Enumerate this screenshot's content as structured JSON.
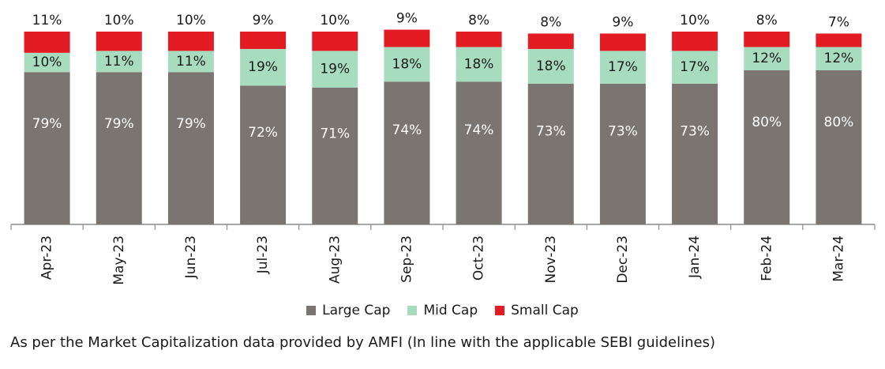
{
  "chart_data": {
    "type": "bar",
    "stacked": true,
    "categories": [
      "Apr-23",
      "May-23",
      "Jun-23",
      "Jul-23",
      "Aug-23",
      "Sep-23",
      "Oct-23",
      "Nov-23",
      "Dec-23",
      "Jan-24",
      "Feb-24",
      "Mar-24"
    ],
    "series": [
      {
        "name": "Large Cap",
        "color": "#7a7571",
        "values": [
          79,
          79,
          79,
          72,
          71,
          74,
          74,
          73,
          73,
          73,
          80,
          80
        ],
        "labels": [
          "79%",
          "79%",
          "79%",
          "72%",
          "71%",
          "74%",
          "74%",
          "73%",
          "73%",
          "73%",
          "80%",
          "80%"
        ]
      },
      {
        "name": "Mid Cap",
        "color": "#a8dcbf",
        "values": [
          10,
          11,
          11,
          19,
          19,
          18,
          18,
          18,
          17,
          17,
          12,
          12
        ],
        "labels": [
          "10%",
          "11%",
          "11%",
          "19%",
          "19%",
          "18%",
          "18%",
          "18%",
          "17%",
          "17%",
          "12%",
          "12%"
        ]
      },
      {
        "name": "Small Cap",
        "color": "#e31b23",
        "values": [
          11,
          10,
          10,
          9,
          10,
          9,
          8,
          8,
          9,
          10,
          8,
          7
        ],
        "labels": [
          "11%",
          "10%",
          "10%",
          "9%",
          "10%",
          "9%",
          "8%",
          "8%",
          "9%",
          "10%",
          "8%",
          "7%"
        ]
      }
    ],
    "ylim": [
      0,
      100
    ],
    "legend_position": "bottom"
  },
  "footnote": "As per the Market Capitalization data provided by AMFI (In line with the applicable SEBI guidelines)"
}
